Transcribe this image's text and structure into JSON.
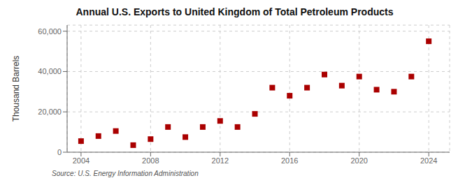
{
  "chart_data": {
    "type": "scatter",
    "title": "Annual U.S. Exports to United Kingdom of Total Petroleum Products",
    "y_label": "Thousand Barrels",
    "annotations": [
      "Source: U.S. Energy Information Administration"
    ],
    "x": [
      2004,
      2005,
      2006,
      2007,
      2008,
      2009,
      2010,
      2011,
      2012,
      2013,
      2014,
      2015,
      2016,
      2017,
      2018,
      2019,
      2020,
      2021,
      2022,
      2023,
      2024
    ],
    "values": [
      5500,
      8000,
      10500,
      3500,
      6500,
      12500,
      7500,
      12500,
      15500,
      12500,
      19000,
      32000,
      28000,
      32000,
      38500,
      33000,
      37500,
      31000,
      30000,
      37500,
      55000
    ],
    "color": "#aa0000",
    "marker": "square",
    "xlim": [
      2003.2,
      2025.2
    ],
    "ylim": [
      0,
      63000
    ],
    "xticks": [
      2004,
      2008,
      2012,
      2016,
      2020,
      2024
    ],
    "yticks": [
      0,
      {
        "value": 20000,
        "label": "20,000"
      },
      {
        "value": 40000,
        "label": "40,000"
      },
      {
        "value": 60000,
        "label": "60,000"
      }
    ],
    "grid": true
  }
}
